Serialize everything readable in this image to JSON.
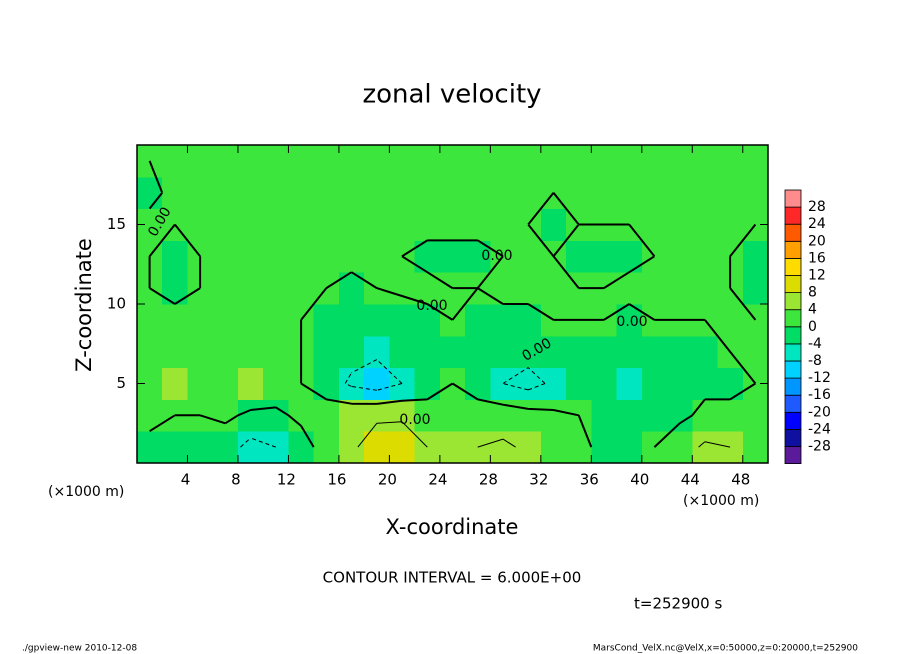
{
  "chart_data": {
    "type": "contour",
    "title": "zonal velocity",
    "x_label": "X-coordinate",
    "y_label": "Z-coordinate",
    "x_unit_label": "(×1000 m)",
    "xlim": [
      0,
      50
    ],
    "ylim": [
      0,
      20
    ],
    "xticks": [
      4,
      8,
      12,
      16,
      20,
      24,
      28,
      32,
      36,
      40,
      44,
      48
    ],
    "yticks": [
      5,
      10,
      15
    ],
    "x": [
      1,
      3,
      5,
      7,
      9,
      11,
      13,
      15,
      17,
      19,
      21,
      23,
      25,
      27,
      29,
      31,
      33,
      35,
      37,
      39,
      41,
      43,
      45,
      47,
      49
    ],
    "y": [
      1,
      3,
      5,
      7,
      9,
      11,
      13,
      15,
      17,
      19
    ],
    "z": [
      [
        -1,
        -2,
        -2,
        -3,
        -8,
        -6,
        -2,
        2,
        5,
        9,
        10,
        6,
        4,
        6,
        7,
        5,
        3,
        1,
        -1,
        -2,
        0,
        3,
        7,
        6,
        2
      ],
      [
        1,
        0,
        0,
        1,
        -1,
        -1,
        1,
        3,
        4,
        5,
        5,
        2,
        0,
        2,
        3,
        2,
        1,
        0,
        -2,
        -4,
        -3,
        -1,
        1,
        1,
        0
      ],
      [
        3,
        4,
        2,
        3,
        5,
        3,
        0,
        -3,
        -7,
        -9,
        -6,
        -2,
        0,
        -2,
        -6,
        -8,
        -5,
        -2,
        -4,
        -6,
        -4,
        -2,
        -1,
        -1,
        0
      ],
      [
        1,
        2,
        1,
        2,
        3,
        2,
        0,
        -2,
        -4,
        -5,
        -4,
        -2,
        -1,
        -1,
        -3,
        -4,
        -3,
        -2,
        -3,
        -3,
        -2,
        -1,
        -1,
        0,
        0
      ],
      [
        0,
        1,
        0,
        1,
        1,
        1,
        0,
        -1,
        -1,
        -2,
        -3,
        -1,
        0,
        -1,
        -1,
        -1,
        0,
        0,
        0,
        -1,
        0,
        0,
        0,
        0,
        0
      ],
      [
        0,
        -1,
        0,
        1,
        1,
        1,
        1,
        0,
        -1,
        0,
        1,
        1,
        0,
        0,
        1,
        1,
        0,
        0,
        0,
        1,
        1,
        0,
        0,
        0,
        -1
      ],
      [
        0,
        -1,
        0,
        1,
        1,
        1,
        2,
        1,
        1,
        1,
        0,
        -1,
        -1,
        -1,
        0,
        0,
        0,
        -1,
        -1,
        -1,
        0,
        0,
        0,
        0,
        -1
      ],
      [
        1,
        0,
        0,
        1,
        1,
        1,
        1,
        1,
        1,
        1,
        1,
        1,
        1,
        1,
        0,
        0,
        -1,
        0,
        0,
        0,
        0,
        1,
        1,
        1,
        0
      ],
      [
        -1,
        1,
        1,
        1,
        1,
        1,
        1,
        1,
        1,
        1,
        1,
        1,
        1,
        1,
        0,
        0,
        0,
        0,
        0,
        0,
        1,
        1,
        1,
        1,
        1
      ],
      [
        0,
        1,
        1,
        1,
        1,
        1,
        1,
        1,
        1,
        0,
        0,
        0,
        0,
        1,
        0,
        0,
        0,
        0,
        0,
        0,
        0,
        0,
        1,
        1,
        0
      ]
    ],
    "contour_levels": [
      -6,
      0,
      6
    ],
    "contour_labels": [
      "0.00",
      "0.00",
      "0.00",
      "0.00",
      "0.00",
      "0.00"
    ],
    "colorbar": {
      "levels": [
        -28,
        -24,
        -20,
        -16,
        -12,
        -8,
        -4,
        0,
        4,
        8,
        12,
        16,
        20,
        24,
        28
      ],
      "colors": [
        "#5a1a9a",
        "#1010a0",
        "#0000ff",
        "#1e5aff",
        "#0096ff",
        "#00d2ff",
        "#00e6c0",
        "#00dc64",
        "#3ce63c",
        "#9be632",
        "#dcdc00",
        "#ffdc00",
        "#ffa000",
        "#ff5a00",
        "#ff2828",
        "#ff8c8c"
      ]
    },
    "contour_interval": "CONTOUR INTERVAL = 6.000E+00",
    "time_label": "t=252900 s",
    "footer_left": "./gpview-new  2010-12-08",
    "footer_right": "MarsCond_VelX.nc@VelX,x=0:50000,z=0:20000,t=252900"
  }
}
